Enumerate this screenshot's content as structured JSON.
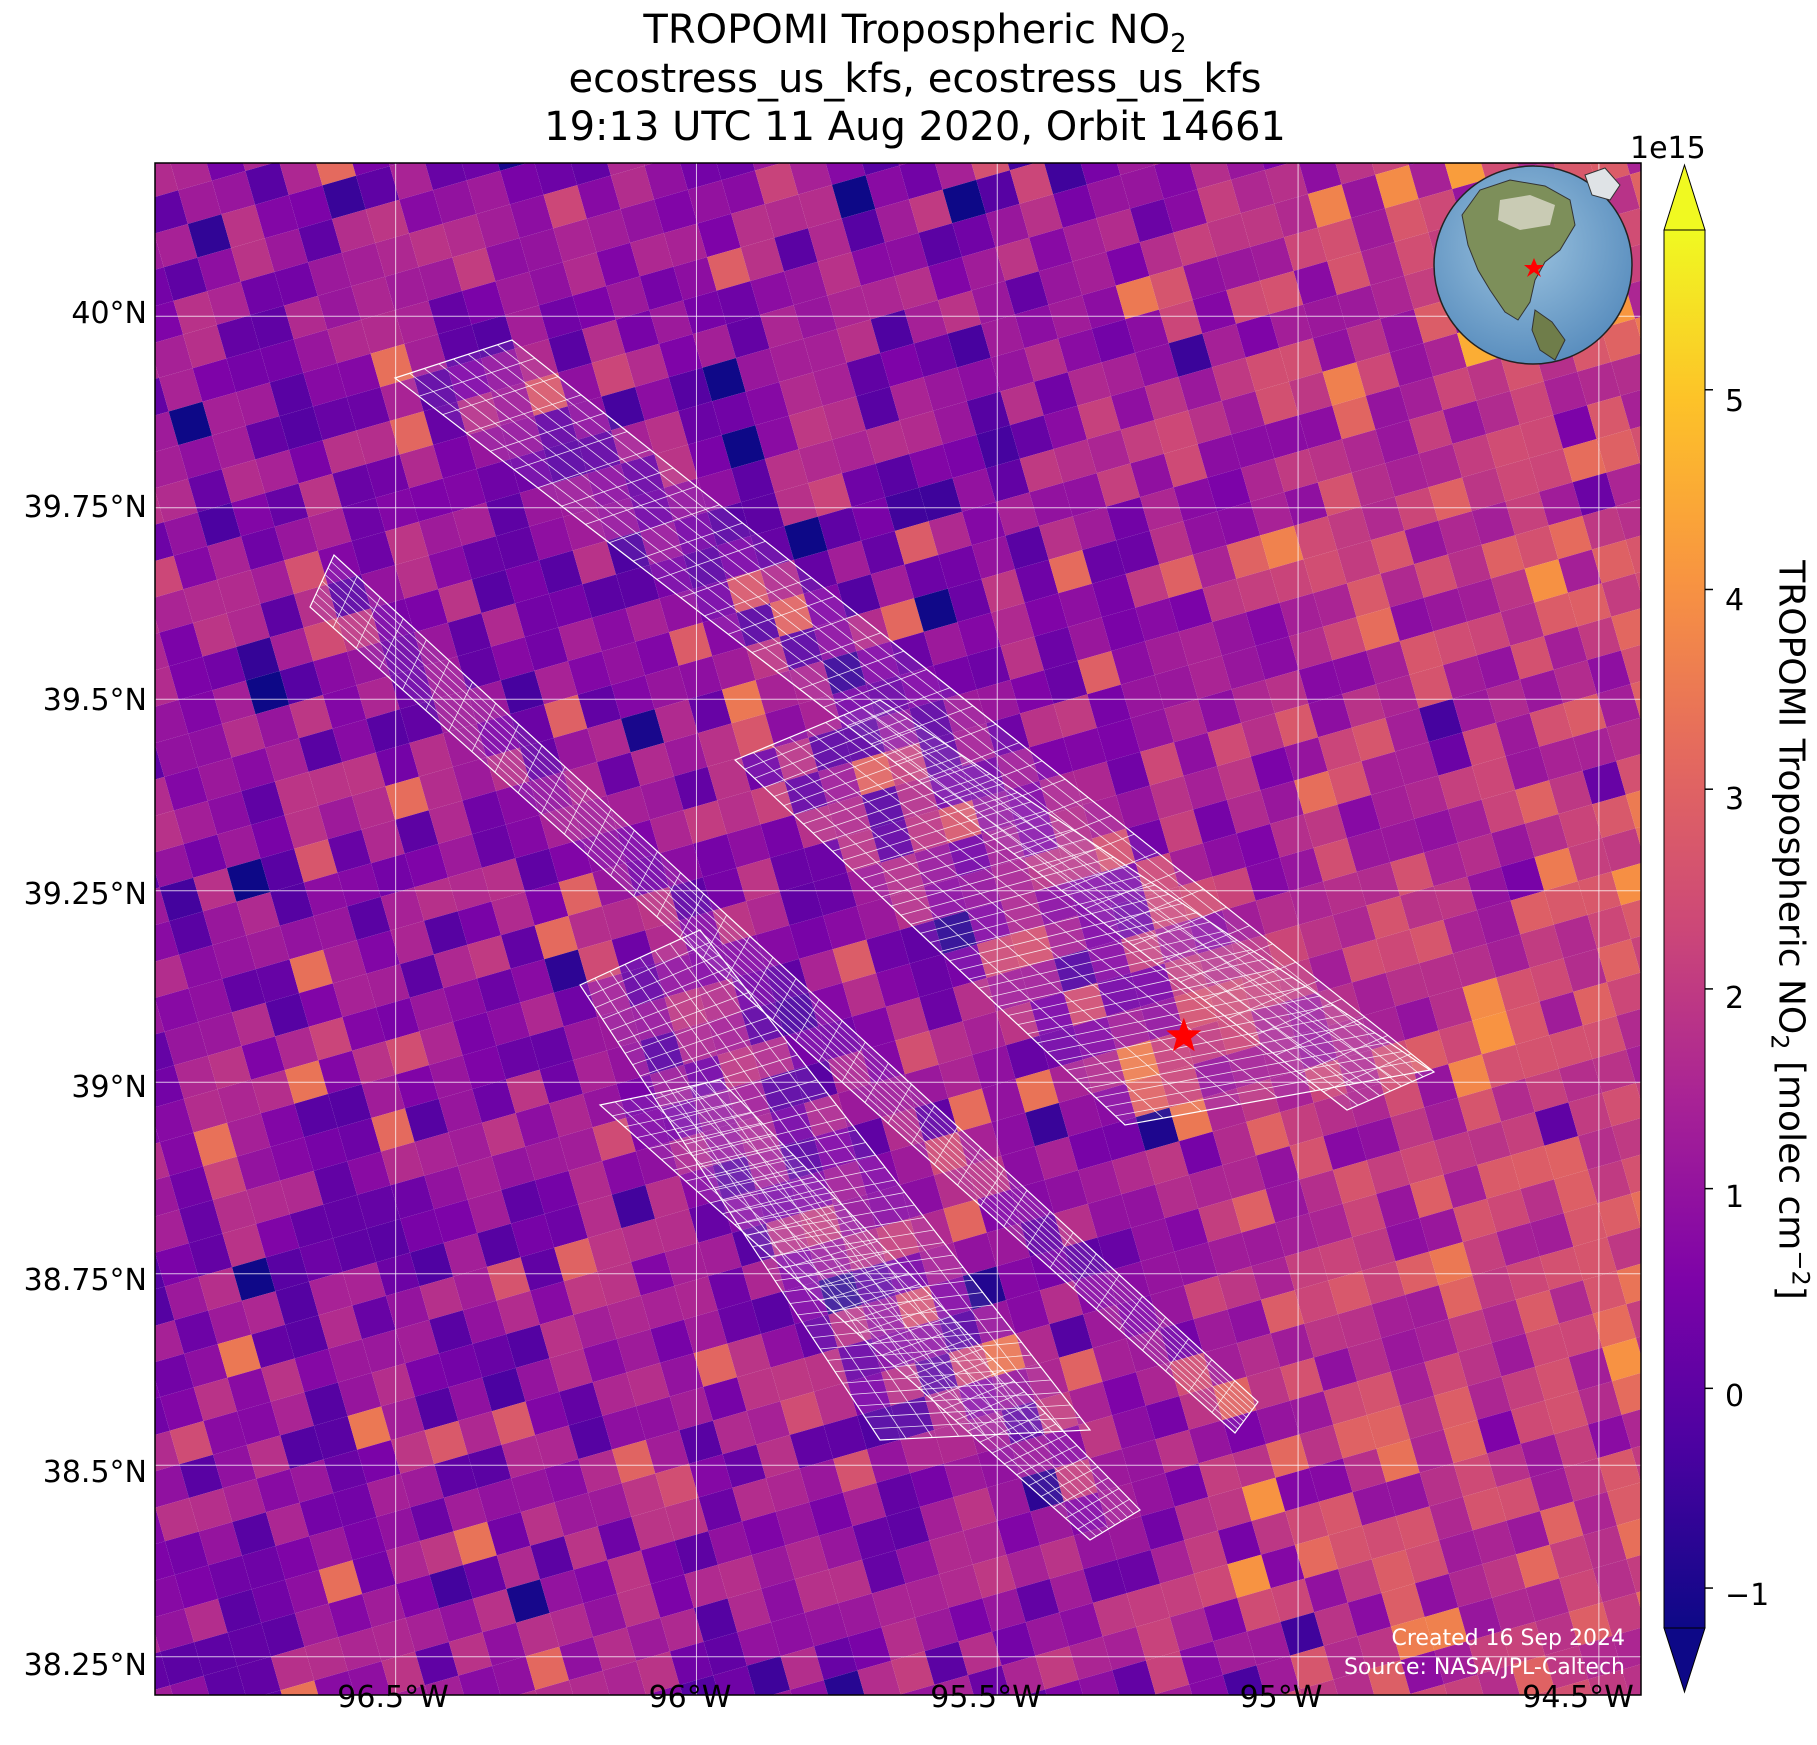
{
  "title": {
    "line1_prefix": "TROPOMI Tropospheric NO",
    "line1_sub": "2",
    "line2": "ecostress_us_kfs, ecostress_us_kfs",
    "line3": "19:13 UTC 11 Aug 2020, Orbit 14661"
  },
  "map": {
    "lon_range": [
      -96.9,
      -94.43
    ],
    "lat_range": [
      38.2,
      40.2
    ],
    "grid": true,
    "lat_ticks": [
      "40°N",
      "39.75°N",
      "39.5°N",
      "39.25°N",
      "39°N",
      "38.75°N",
      "38.5°N",
      "38.25°N"
    ],
    "lon_ticks": [
      "96.5°W",
      "96°W",
      "95.5°W",
      "95°W",
      "94.5°W"
    ],
    "site_marker": {
      "symbol": "star",
      "color": "#ff0000",
      "lon": -95.19,
      "lat": 39.06
    },
    "credits": {
      "created": "Created 16 Sep 2024",
      "source": "Source: NASA/JPL-Caltech"
    },
    "inset": "globe-north-america"
  },
  "colorbar": {
    "colormap": "plasma",
    "exponent": "1e15",
    "range": [
      -1.2,
      5.8
    ],
    "ticks": [
      "−1",
      "0",
      "1",
      "2",
      "3",
      "4",
      "5"
    ],
    "label_prefix": "TROPOMI Tropospheric NO",
    "label_sub": "2",
    "label_mid": " [molec cm",
    "label_sup": "−2",
    "label_end": "]"
  }
}
